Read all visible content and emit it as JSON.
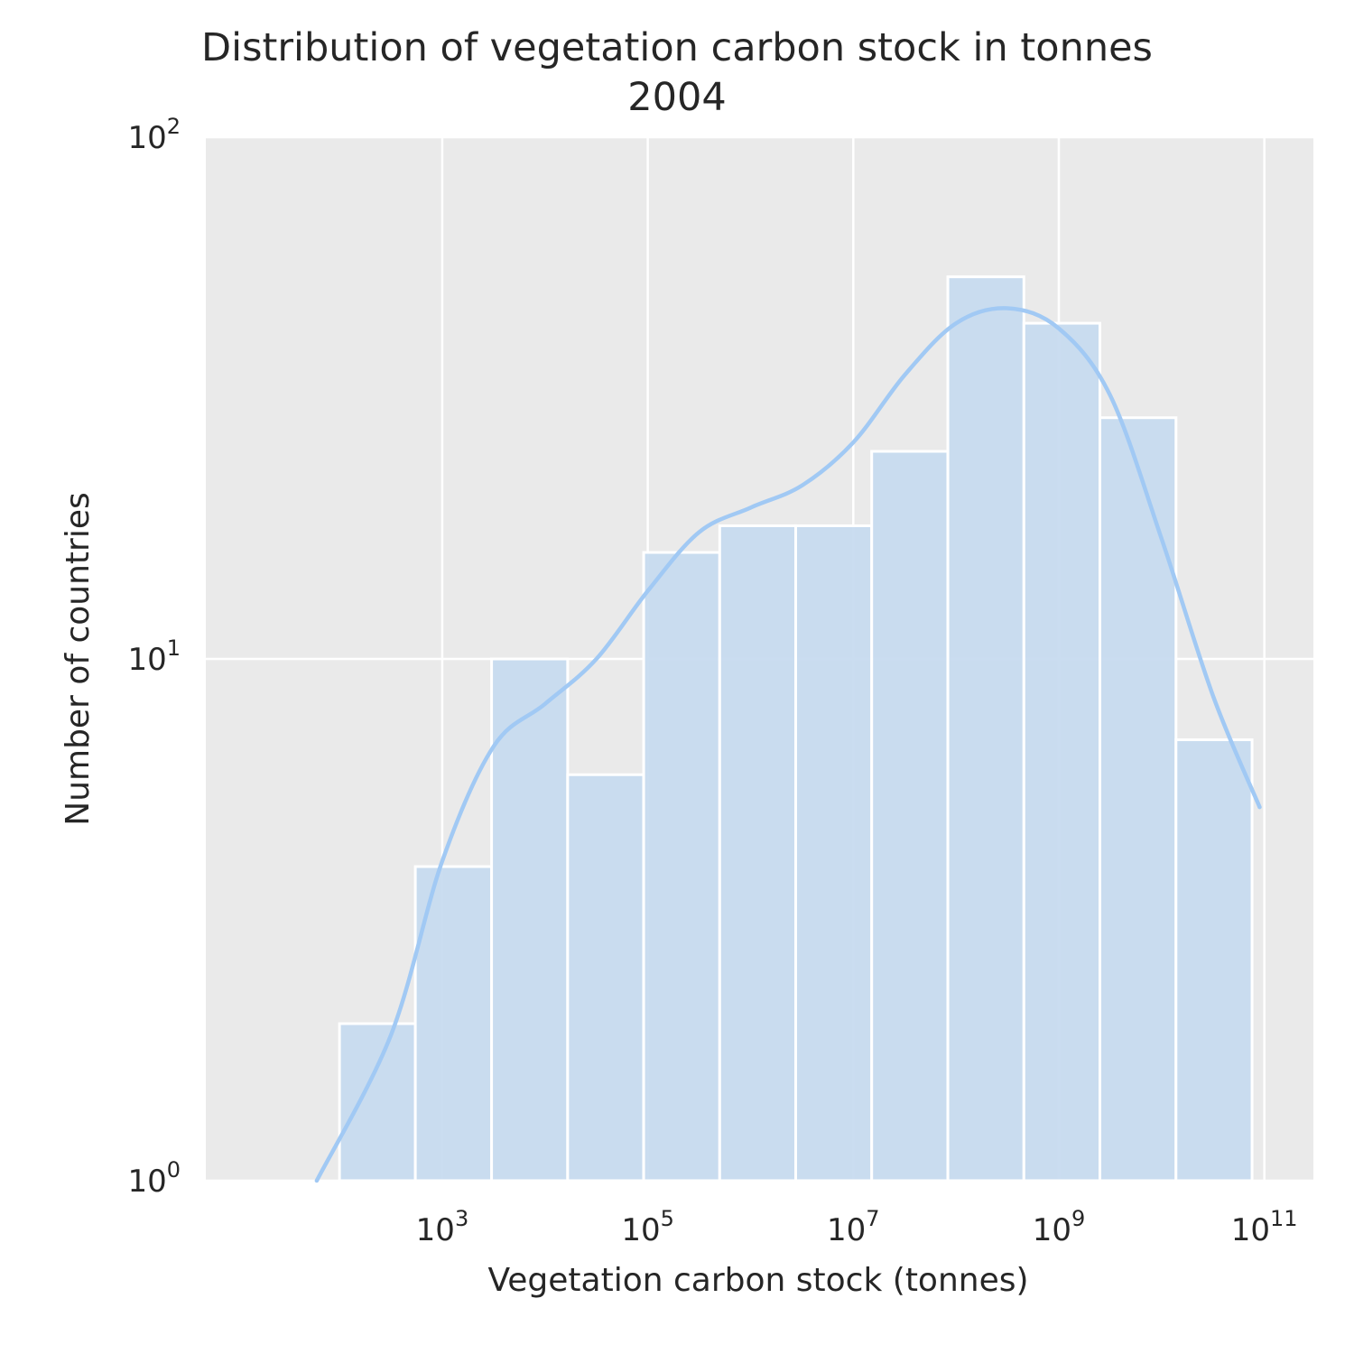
{
  "chart_data": {
    "type": "bar",
    "title": "Distribution of vegetation carbon stock in tonnes",
    "subtitle": "2004",
    "xlabel": "Vegetation carbon stock (tonnes)",
    "ylabel": "Number of countries",
    "x_scale": "log",
    "y_scale": "log",
    "xlim": [
      5.0,
      300000000000
    ],
    "ylim": [
      1,
      100
    ],
    "grid": true,
    "x_ticks": [
      {
        "base": "10",
        "exp": "3",
        "value": 1000
      },
      {
        "base": "10",
        "exp": "5",
        "value": 100000
      },
      {
        "base": "10",
        "exp": "7",
        "value": 10000000
      },
      {
        "base": "10",
        "exp": "9",
        "value": 1000000000
      },
      {
        "base": "10",
        "exp": "11",
        "value": 100000000000
      }
    ],
    "y_ticks": [
      {
        "base": "10",
        "exp": "0",
        "value": 1
      },
      {
        "base": "10",
        "exp": "1",
        "value": 10
      },
      {
        "base": "10",
        "exp": "2",
        "value": 100
      }
    ],
    "bar_color": "#c5daef",
    "kde_color": "#a1c9f4",
    "bins": [
      {
        "x0": 100,
        "x1": 547,
        "count": 2
      },
      {
        "x0": 547,
        "x1": 3020,
        "count": 4
      },
      {
        "x0": 3020,
        "x1": 16600,
        "count": 10
      },
      {
        "x0": 16600,
        "x1": 91200,
        "count": 6
      },
      {
        "x0": 91200,
        "x1": 501000,
        "count": 16
      },
      {
        "x0": 501000,
        "x1": 2750000,
        "count": 18
      },
      {
        "x0": 2750000,
        "x1": 15100000,
        "count": 18
      },
      {
        "x0": 15100000,
        "x1": 83200000,
        "count": 25
      },
      {
        "x0": 83200000,
        "x1": 457000000,
        "count": 54
      },
      {
        "x0": 457000000,
        "x1": 2510000000,
        "count": 44
      },
      {
        "x0": 2510000000,
        "x1": 13800000000,
        "count": 29
      },
      {
        "x0": 13800000000,
        "x1": 75900000000,
        "count": 7
      }
    ],
    "kde": [
      {
        "x": 60,
        "y": 1.0
      },
      {
        "x": 316,
        "y": 1.9
      },
      {
        "x": 1000,
        "y": 4.1
      },
      {
        "x": 3162,
        "y": 6.8
      },
      {
        "x": 10000,
        "y": 8.2
      },
      {
        "x": 31623,
        "y": 10.0
      },
      {
        "x": 100000,
        "y": 13.5
      },
      {
        "x": 316228,
        "y": 17.5
      },
      {
        "x": 1000000,
        "y": 19.5
      },
      {
        "x": 3162278,
        "y": 21.5
      },
      {
        "x": 10000000,
        "y": 26.0
      },
      {
        "x": 31622777,
        "y": 35.0
      },
      {
        "x": 100000000,
        "y": 44.0
      },
      {
        "x": 316227766,
        "y": 47.0
      },
      {
        "x": 1000000000,
        "y": 43.0
      },
      {
        "x": 3162277660,
        "y": 32.0
      },
      {
        "x": 10000000000,
        "y": 17.0
      },
      {
        "x": 31622776602,
        "y": 8.5
      },
      {
        "x": 90000000000,
        "y": 5.2
      }
    ]
  }
}
